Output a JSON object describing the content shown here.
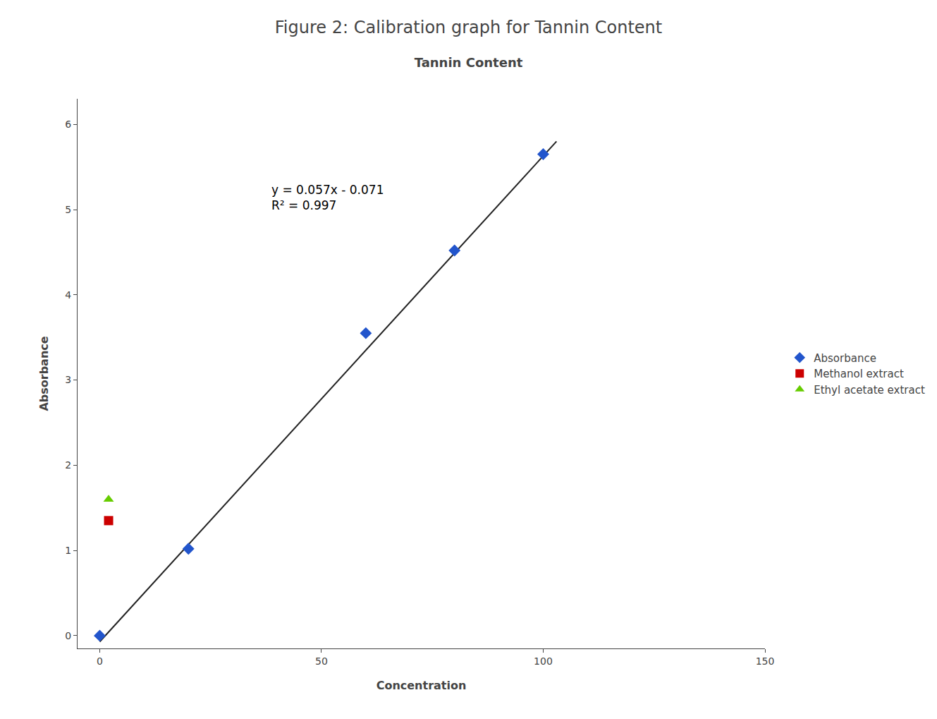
{
  "chart_data": {
    "type": "scatter",
    "title": "Figure 2: Calibration graph for Tannin Content",
    "subtitle": "Tannin Content",
    "xlabel": "Concentration",
    "ylabel": "Absorbance",
    "series": [
      {
        "type": "line",
        "color": "#222222",
        "line_style": "solid",
        "x": [
          0,
          103
        ],
        "values": [
          -0.071,
          5.8
        ]
      },
      {
        "name": "Absorbance",
        "type": "scatter",
        "color": "#2255CC",
        "marker": "diamond",
        "x": [
          0,
          20,
          60,
          80,
          100
        ],
        "values": [
          0.0,
          1.02,
          3.55,
          4.52,
          5.65
        ]
      },
      {
        "name": "Methanol extract",
        "type": "scatter",
        "color": "#CC0000",
        "marker": "square",
        "x": [
          2
        ],
        "values": [
          1.35
        ]
      },
      {
        "name": "Ethyl acetate extract",
        "type": "scatter",
        "color": "#66CC00",
        "marker": "triangle-up",
        "x": [
          2
        ],
        "values": [
          1.6
        ]
      }
    ],
    "annotations": [
      "y = 0.057x - 0.071",
      "R² = 0.997"
    ],
    "xlim": [
      -5,
      150
    ],
    "ylim": [
      -0.15,
      6.3
    ],
    "xticks": [
      0,
      50,
      100,
      150
    ],
    "yticks": [
      0,
      1,
      2,
      3,
      4,
      5,
      6
    ],
    "grid": false,
    "legend": "right"
  }
}
